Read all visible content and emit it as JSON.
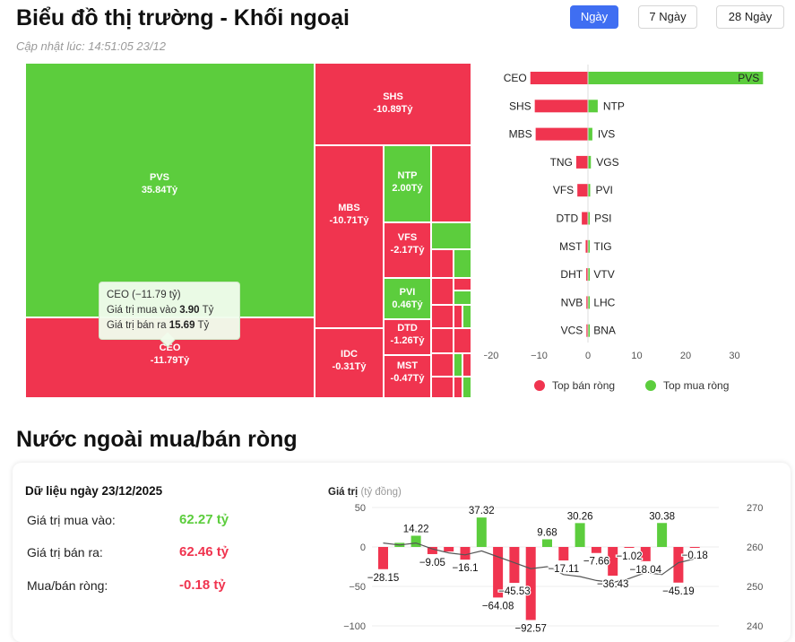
{
  "header": {
    "title": "Biểu đồ thị trường - Khối ngoại",
    "updated": "Cập nhật lúc: 14:51:05 23/12",
    "ranges": [
      "Ngày",
      "7 Ngày",
      "28 Ngày"
    ],
    "active_range": "Ngày"
  },
  "tooltip": {
    "title": "CEO (−11.79 tỷ)",
    "buy_label": "Giá trị mua vào",
    "buy_value": "3.90",
    "sell_label": "Giá trị bán ra",
    "sell_value": "15.69",
    "unit": "Tỷ"
  },
  "colors": {
    "buy": "#5ccd3d",
    "sell": "#f0344f",
    "line": "#555555",
    "active_btn": "#3f6ef2"
  },
  "section2_title": "Nước ngoài mua/bán ròng",
  "daily": {
    "date_label": "Dữ liệu ngày 23/12/2025",
    "rows": [
      {
        "label": "Giá trị mua vào:",
        "value": "62.27 tỷ",
        "color": "#5ccd3d"
      },
      {
        "label": "Giá trị bán ra:",
        "value": "62.46 tỷ",
        "color": "#f0344f"
      },
      {
        "label": "Mua/bán ròng:",
        "value": "-0.18 tỷ",
        "color": "#f0344f"
      }
    ]
  },
  "chart_data": [
    {
      "type": "treemap",
      "unit": "Tỷ",
      "items": [
        {
          "name": "PVS",
          "value": 35.84,
          "label": "35.84Tỷ",
          "side": "buy"
        },
        {
          "name": "CEO",
          "value": -11.79,
          "label": "-11.79Tỷ",
          "side": "sell"
        },
        {
          "name": "SHS",
          "value": -10.89,
          "label": "-10.89Tỷ",
          "side": "sell"
        },
        {
          "name": "MBS",
          "value": -10.71,
          "label": "-10.71Tỷ",
          "side": "sell"
        },
        {
          "name": "IDC",
          "value": -0.31,
          "label": "-0.31Tỷ",
          "side": "sell"
        },
        {
          "name": "NTP",
          "value": 2.0,
          "label": "2.00Tỷ",
          "side": "buy"
        },
        {
          "name": "VFS",
          "value": -2.17,
          "label": "-2.17Tỷ",
          "side": "sell"
        },
        {
          "name": "PVI",
          "value": 0.46,
          "label": "0.46Tỷ",
          "side": "buy"
        },
        {
          "name": "DTD",
          "value": -1.26,
          "label": "-1.26Tỷ",
          "side": "sell"
        },
        {
          "name": "MST",
          "value": -0.47,
          "label": "-0.47Tỷ",
          "side": "sell"
        }
      ]
    },
    {
      "type": "bar",
      "orientation": "horizontal",
      "xlim": [
        -20,
        40
      ],
      "xticks": [
        -20,
        -10,
        0,
        10,
        20,
        30
      ],
      "legend": [
        "Top bán ròng",
        "Top mua ròng"
      ],
      "legend_position": "bottom",
      "rows": [
        {
          "sell": "CEO",
          "sell_value": -11.79,
          "buy": "PVS",
          "buy_value": 35.84
        },
        {
          "sell": "SHS",
          "sell_value": -10.89,
          "buy": "NTP",
          "buy_value": 2.0
        },
        {
          "sell": "MBS",
          "sell_value": -10.71,
          "buy": "IVS",
          "buy_value": 0.9
        },
        {
          "sell": "TNG",
          "sell_value": -2.4,
          "buy": "VGS",
          "buy_value": 0.6
        },
        {
          "sell": "VFS",
          "sell_value": -2.17,
          "buy": "PVI",
          "buy_value": 0.46
        },
        {
          "sell": "DTD",
          "sell_value": -1.26,
          "buy": "PSI",
          "buy_value": 0.2
        },
        {
          "sell": "MST",
          "sell_value": -0.47,
          "buy": "TIG",
          "buy_value": 0.1
        },
        {
          "sell": "DHT",
          "sell_value": -0.35,
          "buy": "VTV",
          "buy_value": 0.08
        },
        {
          "sell": "NVB",
          "sell_value": -0.32,
          "buy": "LHC",
          "buy_value": 0.06
        },
        {
          "sell": "VCS",
          "sell_value": -0.31,
          "buy": "BNA",
          "buy_value": 0.05
        }
      ]
    },
    {
      "type": "bar",
      "ylabel": "Giá trị",
      "ylabel_unit": "(tỷ đồng)",
      "ylim": [
        -100,
        50
      ],
      "yticks": [
        50,
        0,
        -50,
        -100
      ],
      "y2lim": [
        240,
        270
      ],
      "y2ticks": [
        270,
        260,
        250,
        240
      ],
      "values": [
        -28.15,
        5.2,
        14.22,
        -9.05,
        -5.8,
        -16.1,
        37.32,
        -64.08,
        -45.53,
        -92.57,
        9.68,
        -17.11,
        30.26,
        -7.66,
        -36.43,
        -1.02,
        -18.04,
        30.38,
        -45.19,
        -0.18
      ],
      "labels": [
        "-28.15",
        "",
        "14.22",
        "-9.05",
        "",
        "-16.1",
        "37.32",
        "-64.08",
        "-45.53",
        "-92.57",
        "9.68",
        "-17.11",
        "30.26",
        "-7.66",
        "-36.43",
        "-1.02",
        "-18.04",
        "30.38",
        "-45.19",
        "-0.18"
      ],
      "line": [
        261,
        260.5,
        261,
        259.5,
        258.5,
        258,
        259,
        257.5,
        256,
        254.5,
        255,
        253,
        252.5,
        251.5,
        251,
        252,
        253.5,
        253,
        256,
        257
      ]
    }
  ]
}
